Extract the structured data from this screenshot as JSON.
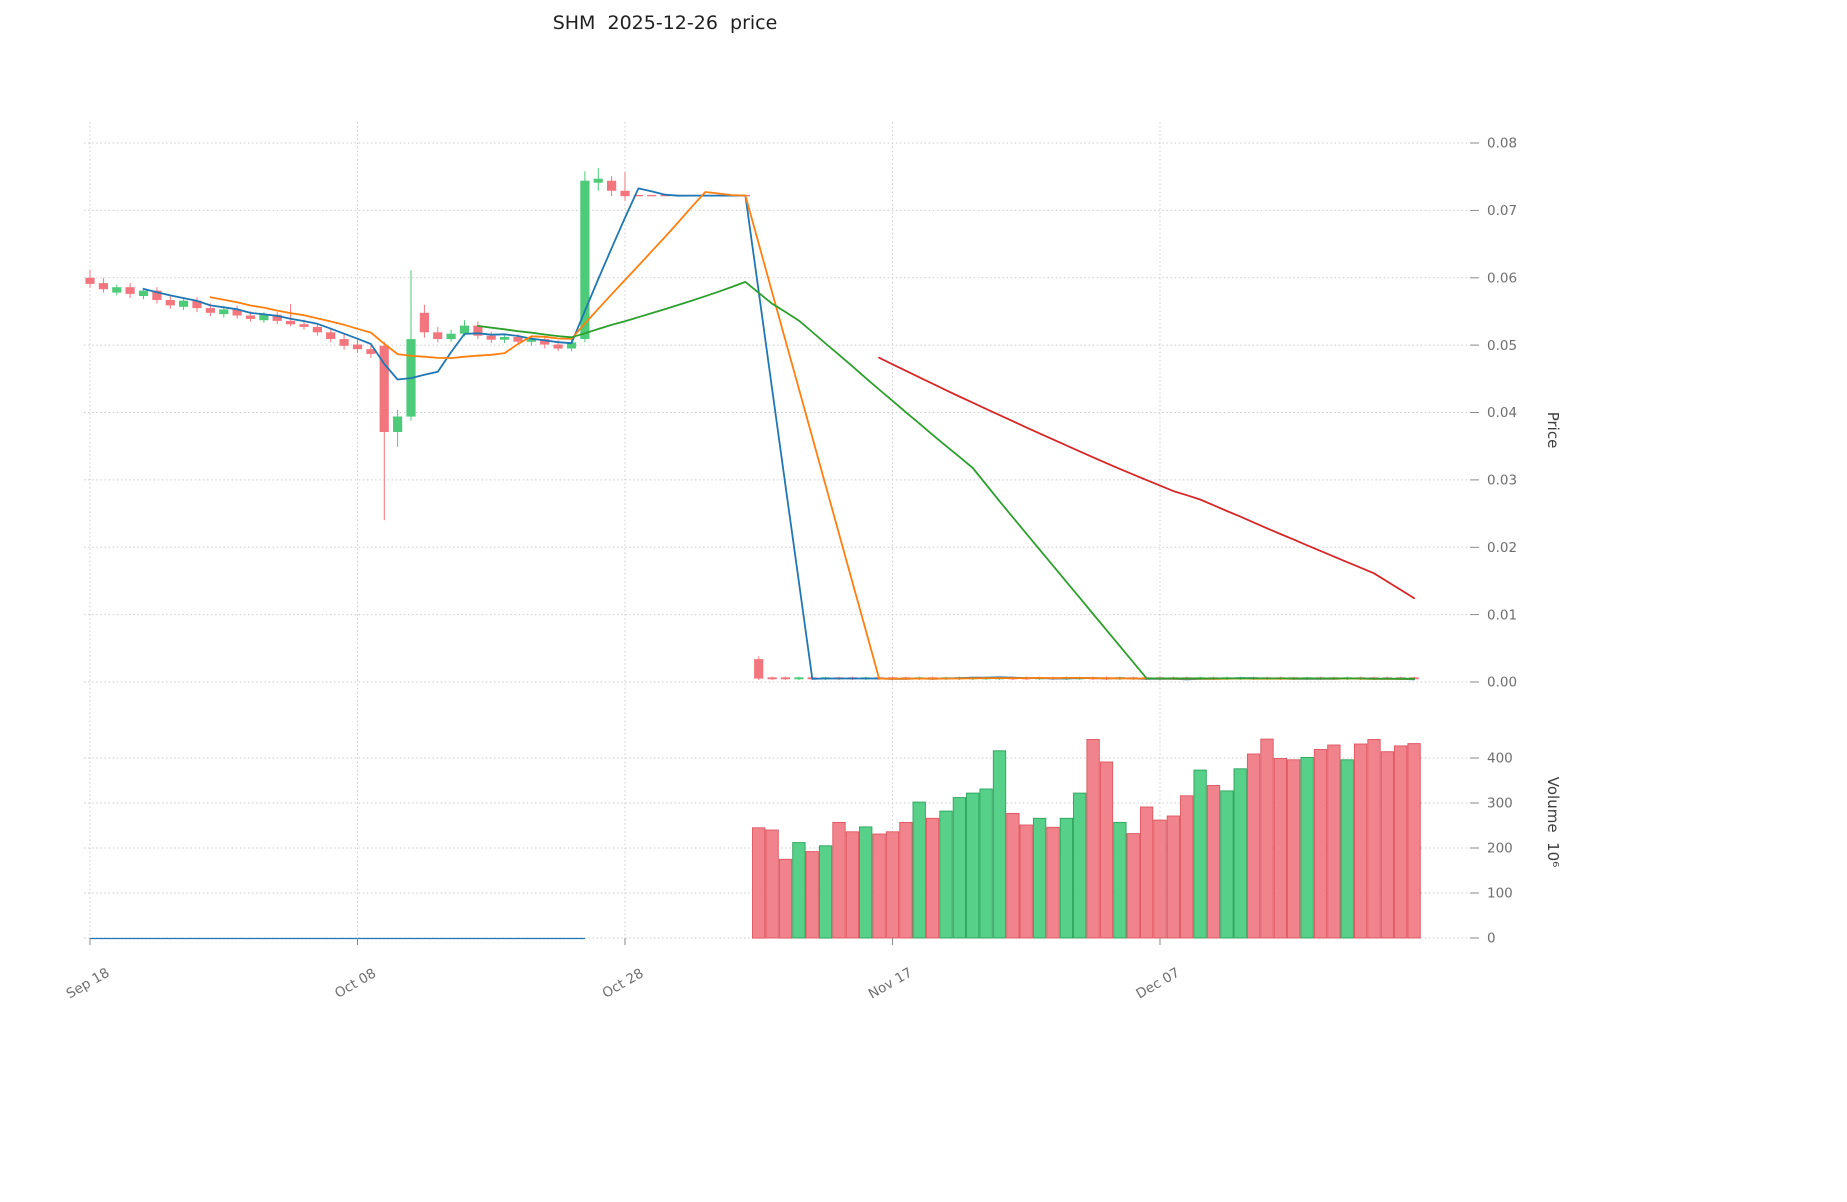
{
  "title": "SHM  2025-12-26  price",
  "axes": {
    "price_label": "Price",
    "volume_label": "Volume  10⁶",
    "price_ticks": [
      {
        "label": "0.08",
        "value": 0.08
      },
      {
        "label": "0.07",
        "value": 0.07
      },
      {
        "label": "0.06",
        "value": 0.06
      },
      {
        "label": "0.05",
        "value": 0.05
      },
      {
        "label": "0.04",
        "value": 0.04
      },
      {
        "label": "0.03",
        "value": 0.03
      },
      {
        "label": "0.02",
        "value": 0.02
      },
      {
        "label": "0.01",
        "value": 0.01
      },
      {
        "label": "0.00",
        "value": 0.0
      }
    ],
    "volume_ticks": [
      {
        "label": "400",
        "value": 400
      },
      {
        "label": "300",
        "value": 300
      },
      {
        "label": "200",
        "value": 200
      },
      {
        "label": "100",
        "value": 100
      },
      {
        "label": "0",
        "value": 0
      }
    ],
    "x_ticks": [
      {
        "label": "Sep 18",
        "day": 0
      },
      {
        "label": "Oct 08",
        "day": 20
      },
      {
        "label": "Oct 28",
        "day": 40
      },
      {
        "label": "Nov 17",
        "day": 60
      },
      {
        "label": "Dec 07",
        "day": 80
      }
    ]
  },
  "colors": {
    "up": "#4ecb79",
    "down": "#f3767e",
    "vol_up": "#57d089",
    "vol_up_edge": "#2ba35b",
    "vol_down": "#f0838b",
    "vol_down_edge": "#de5660",
    "baseline": "#1f77b4"
  },
  "chart_data": {
    "type": "candlestick+volume",
    "title": "SHM  2025-12-26  price",
    "x_unit": "calendar day offset from Sep 18",
    "price_ylim": [
      0.0,
      0.08
    ],
    "volume_ylim": [
      0,
      500
    ],
    "legend": "none",
    "grid": true,
    "ma_lines": [
      {
        "name": "MA5",
        "window": 5,
        "color": "#1f77b4"
      },
      {
        "name": "MA10",
        "window": 10,
        "color": "#ff7f0e"
      },
      {
        "name": "MA30",
        "window": 30,
        "color": "#2ca02c"
      },
      {
        "name": "MA60",
        "window": 60,
        "color": "#d62728"
      }
    ],
    "volume_baseline": {
      "day_start": 0,
      "day_end": 37,
      "value": 0
    },
    "candles": [
      [
        0,
        0.06,
        0.0612,
        0.0585,
        0.0591
      ],
      [
        1,
        0.0592,
        0.06,
        0.0578,
        0.0583
      ],
      [
        2,
        0.0578,
        0.059,
        0.0574,
        0.0586
      ],
      [
        3,
        0.0586,
        0.0592,
        0.057,
        0.0576
      ],
      [
        4,
        0.0573,
        0.0585,
        0.0568,
        0.0581
      ],
      [
        5,
        0.0581,
        0.0586,
        0.0562,
        0.0567
      ],
      [
        6,
        0.0567,
        0.0574,
        0.0554,
        0.0559
      ],
      [
        7,
        0.0557,
        0.0571,
        0.0552,
        0.0566
      ],
      [
        8,
        0.0566,
        0.0571,
        0.0549,
        0.0555
      ],
      [
        9,
        0.0555,
        0.0562,
        0.0543,
        0.0548
      ],
      [
        10,
        0.0546,
        0.0558,
        0.0541,
        0.0553
      ],
      [
        11,
        0.0553,
        0.0559,
        0.0539,
        0.0544
      ],
      [
        12,
        0.0544,
        0.055,
        0.0535,
        0.0539
      ],
      [
        13,
        0.0537,
        0.0549,
        0.0533,
        0.0545
      ],
      [
        14,
        0.0545,
        0.0549,
        0.0531,
        0.0536
      ],
      [
        15,
        0.0536,
        0.0561,
        0.0528,
        0.0531
      ],
      [
        16,
        0.0531,
        0.0538,
        0.0523,
        0.0527
      ],
      [
        17,
        0.0527,
        0.0533,
        0.0514,
        0.0519
      ],
      [
        18,
        0.0519,
        0.0526,
        0.0504,
        0.0509
      ],
      [
        19,
        0.0509,
        0.0516,
        0.0493,
        0.0499
      ],
      [
        20,
        0.0501,
        0.0509,
        0.0489,
        0.0494
      ],
      [
        21,
        0.0494,
        0.0501,
        0.0481,
        0.0487
      ],
      [
        22,
        0.0499,
        0.0505,
        0.024,
        0.0371
      ],
      [
        23,
        0.0371,
        0.0404,
        0.0349,
        0.0394
      ],
      [
        24,
        0.0394,
        0.0611,
        0.0388,
        0.0509
      ],
      [
        25,
        0.0548,
        0.056,
        0.0511,
        0.0519
      ],
      [
        26,
        0.0519,
        0.0527,
        0.0504,
        0.0509
      ],
      [
        27,
        0.0509,
        0.0523,
        0.0505,
        0.0517
      ],
      [
        28,
        0.0517,
        0.0537,
        0.0513,
        0.0529
      ],
      [
        29,
        0.0529,
        0.0535,
        0.0509,
        0.0514
      ],
      [
        30,
        0.0514,
        0.052,
        0.0503,
        0.0508
      ],
      [
        31,
        0.0508,
        0.0517,
        0.0503,
        0.0512
      ],
      [
        32,
        0.0512,
        0.0516,
        0.0501,
        0.0505
      ],
      [
        33,
        0.0505,
        0.0513,
        0.0499,
        0.0509
      ],
      [
        34,
        0.0509,
        0.0513,
        0.0495,
        0.0501
      ],
      [
        35,
        0.0501,
        0.0507,
        0.0491,
        0.0495
      ],
      [
        36,
        0.0495,
        0.0509,
        0.0491,
        0.0504
      ],
      [
        37,
        0.0509,
        0.0758,
        0.0504,
        0.0744
      ],
      [
        38,
        0.0741,
        0.0763,
        0.0729,
        0.0747
      ],
      [
        39,
        0.0744,
        0.0751,
        0.0721,
        0.0729
      ],
      [
        40,
        0.0729,
        0.0757,
        0.0714,
        0.0721
      ],
      [
        41,
        0.0722,
        0.0722,
        0.0722,
        0.0722
      ],
      [
        42,
        0.0722,
        0.0722,
        0.0722,
        0.0722
      ],
      [
        43,
        0.0722,
        0.0722,
        0.0722,
        0.0722
      ],
      [
        44,
        0.0722,
        0.0722,
        0.0722,
        0.0722
      ],
      [
        45,
        0.0722,
        0.0722,
        0.0722,
        0.0722
      ],
      [
        46,
        0.0722,
        0.0722,
        0.0722,
        0.0722
      ],
      [
        47,
        0.0722,
        0.0722,
        0.0722,
        0.0722
      ],
      [
        48,
        0.0722,
        0.0722,
        0.0722,
        0.0722
      ],
      [
        49,
        0.0722,
        0.0722,
        0.0722,
        0.0722
      ],
      [
        50,
        0.0034,
        0.0038,
        0.0003,
        0.0005
      ],
      [
        51,
        0.0007,
        0.0008,
        0.0003,
        0.0004
      ],
      [
        52,
        0.0007,
        0.0008,
        0.0003,
        0.0004
      ],
      [
        53,
        0.0004,
        0.0008,
        0.0003,
        0.0007
      ],
      [
        54,
        0.0007,
        0.0008,
        0.0003,
        0.0004
      ],
      [
        55,
        0.0004,
        0.0008,
        0.0003,
        0.0007
      ],
      [
        56,
        0.0007,
        0.0008,
        0.0003,
        0.0004
      ],
      [
        57,
        0.0007,
        0.0008,
        0.0003,
        0.0004
      ],
      [
        58,
        0.0004,
        0.0008,
        0.0003,
        0.0007
      ],
      [
        59,
        0.0007,
        0.0008,
        0.0003,
        0.0004
      ],
      [
        60,
        0.0007,
        0.0008,
        0.0003,
        0.0004
      ],
      [
        61,
        0.0007,
        0.0008,
        0.0003,
        0.0004
      ],
      [
        62,
        0.0004,
        0.0008,
        0.0003,
        0.0007
      ],
      [
        63,
        0.0007,
        0.0008,
        0.0003,
        0.0004
      ],
      [
        64,
        0.0004,
        0.0008,
        0.0003,
        0.0007
      ],
      [
        65,
        0.0004,
        0.0008,
        0.0003,
        0.0007
      ],
      [
        66,
        0.0004,
        0.0008,
        0.0003,
        0.0007
      ],
      [
        67,
        0.0004,
        0.0008,
        0.0003,
        0.0007
      ],
      [
        68,
        0.0004,
        0.0008,
        0.0003,
        0.0007
      ],
      [
        69,
        0.0007,
        0.0008,
        0.0003,
        0.0004
      ],
      [
        70,
        0.0007,
        0.0008,
        0.0003,
        0.0004
      ],
      [
        71,
        0.0004,
        0.0008,
        0.0003,
        0.0007
      ],
      [
        72,
        0.0007,
        0.0008,
        0.0003,
        0.0004
      ],
      [
        73,
        0.0004,
        0.0008,
        0.0003,
        0.0007
      ],
      [
        74,
        0.0004,
        0.0008,
        0.0003,
        0.0007
      ],
      [
        75,
        0.0007,
        0.0008,
        0.0003,
        0.0004
      ],
      [
        76,
        0.0007,
        0.0008,
        0.0003,
        0.0004
      ],
      [
        77,
        0.0004,
        0.0008,
        0.0003,
        0.0007
      ],
      [
        78,
        0.0007,
        0.0008,
        0.0003,
        0.0004
      ],
      [
        79,
        0.0007,
        0.0008,
        0.0003,
        0.0004
      ],
      [
        80,
        0.0007,
        0.0008,
        0.0003,
        0.0004
      ],
      [
        81,
        0.0007,
        0.0008,
        0.0003,
        0.0004
      ],
      [
        82,
        0.0007,
        0.0008,
        0.0003,
        0.0004
      ],
      [
        83,
        0.0004,
        0.0008,
        0.0003,
        0.0007
      ],
      [
        84,
        0.0007,
        0.0008,
        0.0003,
        0.0004
      ],
      [
        85,
        0.0004,
        0.0008,
        0.0003,
        0.0007
      ],
      [
        86,
        0.0004,
        0.0008,
        0.0003,
        0.0007
      ],
      [
        87,
        0.0007,
        0.0008,
        0.0003,
        0.0004
      ],
      [
        88,
        0.0007,
        0.0008,
        0.0003,
        0.0004
      ],
      [
        89,
        0.0007,
        0.0008,
        0.0003,
        0.0004
      ],
      [
        90,
        0.0007,
        0.0008,
        0.0003,
        0.0004
      ],
      [
        91,
        0.0004,
        0.0008,
        0.0003,
        0.0007
      ],
      [
        92,
        0.0007,
        0.0008,
        0.0003,
        0.0004
      ],
      [
        93,
        0.0007,
        0.0008,
        0.0003,
        0.0004
      ],
      [
        94,
        0.0004,
        0.0008,
        0.0003,
        0.0007
      ],
      [
        95,
        0.0007,
        0.0008,
        0.0003,
        0.0004
      ],
      [
        96,
        0.0007,
        0.0008,
        0.0003,
        0.0004
      ],
      [
        97,
        0.0007,
        0.0008,
        0.0003,
        0.0004
      ],
      [
        98,
        0.0007,
        0.0008,
        0.0003,
        0.0004
      ],
      [
        99,
        0.0007,
        0.0008,
        0.0003,
        0.0004
      ]
    ],
    "volume": [
      [
        50,
        245,
        "d"
      ],
      [
        51,
        240,
        "d"
      ],
      [
        52,
        175,
        "d"
      ],
      [
        53,
        212,
        "u"
      ],
      [
        54,
        192,
        "d"
      ],
      [
        55,
        205,
        "u"
      ],
      [
        56,
        257,
        "d"
      ],
      [
        57,
        236,
        "d"
      ],
      [
        58,
        247,
        "u"
      ],
      [
        59,
        231,
        "d"
      ],
      [
        60,
        236,
        "d"
      ],
      [
        61,
        257,
        "d"
      ],
      [
        62,
        302,
        "u"
      ],
      [
        63,
        266,
        "d"
      ],
      [
        64,
        282,
        "u"
      ],
      [
        65,
        312,
        "u"
      ],
      [
        66,
        322,
        "u"
      ],
      [
        67,
        331,
        "u"
      ],
      [
        68,
        416,
        "u"
      ],
      [
        69,
        277,
        "d"
      ],
      [
        70,
        251,
        "d"
      ],
      [
        71,
        266,
        "u"
      ],
      [
        72,
        246,
        "d"
      ],
      [
        73,
        266,
        "u"
      ],
      [
        74,
        322,
        "u"
      ],
      [
        75,
        441,
        "d"
      ],
      [
        76,
        391,
        "d"
      ],
      [
        77,
        257,
        "u"
      ],
      [
        78,
        232,
        "d"
      ],
      [
        79,
        291,
        "d"
      ],
      [
        80,
        262,
        "d"
      ],
      [
        81,
        271,
        "d"
      ],
      [
        82,
        316,
        "d"
      ],
      [
        83,
        373,
        "u"
      ],
      [
        84,
        339,
        "d"
      ],
      [
        85,
        327,
        "u"
      ],
      [
        86,
        376,
        "u"
      ],
      [
        87,
        409,
        "d"
      ],
      [
        88,
        442,
        "d"
      ],
      [
        89,
        399,
        "d"
      ],
      [
        90,
        396,
        "d"
      ],
      [
        91,
        401,
        "u"
      ],
      [
        92,
        419,
        "d"
      ],
      [
        93,
        429,
        "d"
      ],
      [
        94,
        396,
        "u"
      ],
      [
        95,
        431,
        "d"
      ],
      [
        96,
        441,
        "d"
      ],
      [
        97,
        414,
        "d"
      ],
      [
        98,
        427,
        "d"
      ],
      [
        99,
        432,
        "d"
      ]
    ]
  }
}
